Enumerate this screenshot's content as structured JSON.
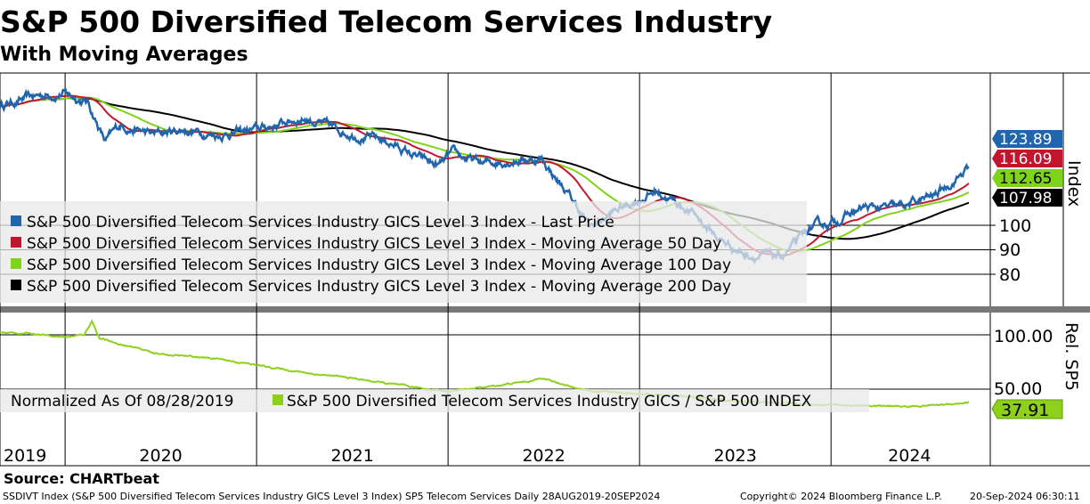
{
  "title": "S&P 500 Diversified Telecom Services Industry",
  "subtitle": "With Moving Averages",
  "source": "Source: CHARTbeat",
  "footer": {
    "left": "SSDIVT Index (S&P 500 Diversified Telecom Services Industry GICS Level 3 Index) SP5 Telecom Services  Daily 28AUG2019-20SEP2024",
    "copyright": "Copyright© 2024 Bloomberg Finance L.P.",
    "timestamp": "20-Sep-2024 06:30:11"
  },
  "colors": {
    "price": "#2166ac",
    "ma50": "#c0172e",
    "ma100": "#7fd31a",
    "ma200": "#000000",
    "rel": "#8fd11a"
  },
  "chart_data": [
    {
      "type": "line",
      "title": "Index",
      "ylabel": "Index",
      "yticks": [
        "100",
        "90",
        "80"
      ],
      "ylim": [
        76,
        162
      ],
      "x_years": [
        "2019",
        "2020",
        "2021",
        "2022",
        "2023",
        "2024"
      ],
      "x_range": [
        2019.66,
        2024.72
      ],
      "legend": [
        "S&P 500 Diversified Telecom Services Industry GICS Level 3 Index - Last Price",
        "S&P 500 Diversified Telecom Services Industry GICS Level 3 Index - Moving Average 50 Day",
        "S&P 500 Diversified Telecom Services Industry GICS Level 3 Index - Moving Average 100 Day",
        "S&P 500 Diversified Telecom Services Industry GICS Level 3 Index - Moving Average 200 Day"
      ],
      "ma_periods": [
        50,
        100,
        200
      ],
      "last_values": {
        "price": "123.89",
        "ma50": "116.09",
        "ma100": "112.65",
        "ma200": "107.98"
      },
      "price_keypoints": [
        [
          2019.66,
          149
        ],
        [
          2019.87,
          153
        ],
        [
          2020.0,
          154
        ],
        [
          2020.12,
          150
        ],
        [
          2020.21,
          134
        ],
        [
          2020.29,
          141
        ],
        [
          2020.45,
          137
        ],
        [
          2020.62,
          139
        ],
        [
          2020.8,
          137
        ],
        [
          2021.0,
          139
        ],
        [
          2021.25,
          144
        ],
        [
          2021.42,
          139
        ],
        [
          2021.69,
          134
        ],
        [
          2021.83,
          128
        ],
        [
          2021.95,
          124
        ],
        [
          2022.02,
          129
        ],
        [
          2022.18,
          125
        ],
        [
          2022.35,
          127
        ],
        [
          2022.49,
          127
        ],
        [
          2022.67,
          108
        ],
        [
          2022.74,
          99
        ],
        [
          2022.9,
          107
        ],
        [
          2023.09,
          114
        ],
        [
          2023.28,
          105
        ],
        [
          2023.42,
          94
        ],
        [
          2023.56,
          88
        ],
        [
          2023.74,
          87
        ],
        [
          2023.81,
          92
        ],
        [
          2023.9,
          99
        ],
        [
          2024.0,
          101
        ],
        [
          2024.17,
          107
        ],
        [
          2024.35,
          107
        ],
        [
          2024.54,
          112
        ],
        [
          2024.68,
          121
        ],
        [
          2024.72,
          123.89
        ]
      ]
    },
    {
      "type": "line",
      "title": "Rel. SP5",
      "ylabel": "Rel. SP5",
      "yticks": [
        "100.00",
        "50.00"
      ],
      "ylim": [
        10,
        120
      ],
      "legend": [
        "Normalized As Of 08/28/2019",
        "S&P 500 Diversified Telecom Services Industry GICS / S&P 500 INDEX"
      ],
      "last_value": "37.91",
      "keypoints": [
        [
          2019.66,
          102
        ],
        [
          2019.85,
          101
        ],
        [
          2020.0,
          98
        ],
        [
          2020.1,
          100
        ],
        [
          2020.14,
          113
        ],
        [
          2020.18,
          97
        ],
        [
          2020.25,
          93
        ],
        [
          2020.5,
          82
        ],
        [
          2020.8,
          78
        ],
        [
          2021.0,
          72
        ],
        [
          2021.3,
          64
        ],
        [
          2021.5,
          60
        ],
        [
          2021.8,
          52
        ],
        [
          2022.0,
          48
        ],
        [
          2022.2,
          52
        ],
        [
          2022.45,
          58
        ],
        [
          2022.5,
          61
        ],
        [
          2022.56,
          56
        ],
        [
          2022.75,
          48
        ],
        [
          2023.0,
          46
        ],
        [
          2023.3,
          42
        ],
        [
          2023.6,
          38
        ],
        [
          2023.9,
          36
        ],
        [
          2024.1,
          35
        ],
        [
          2024.4,
          34
        ],
        [
          2024.6,
          36
        ],
        [
          2024.72,
          37.91
        ]
      ]
    }
  ]
}
